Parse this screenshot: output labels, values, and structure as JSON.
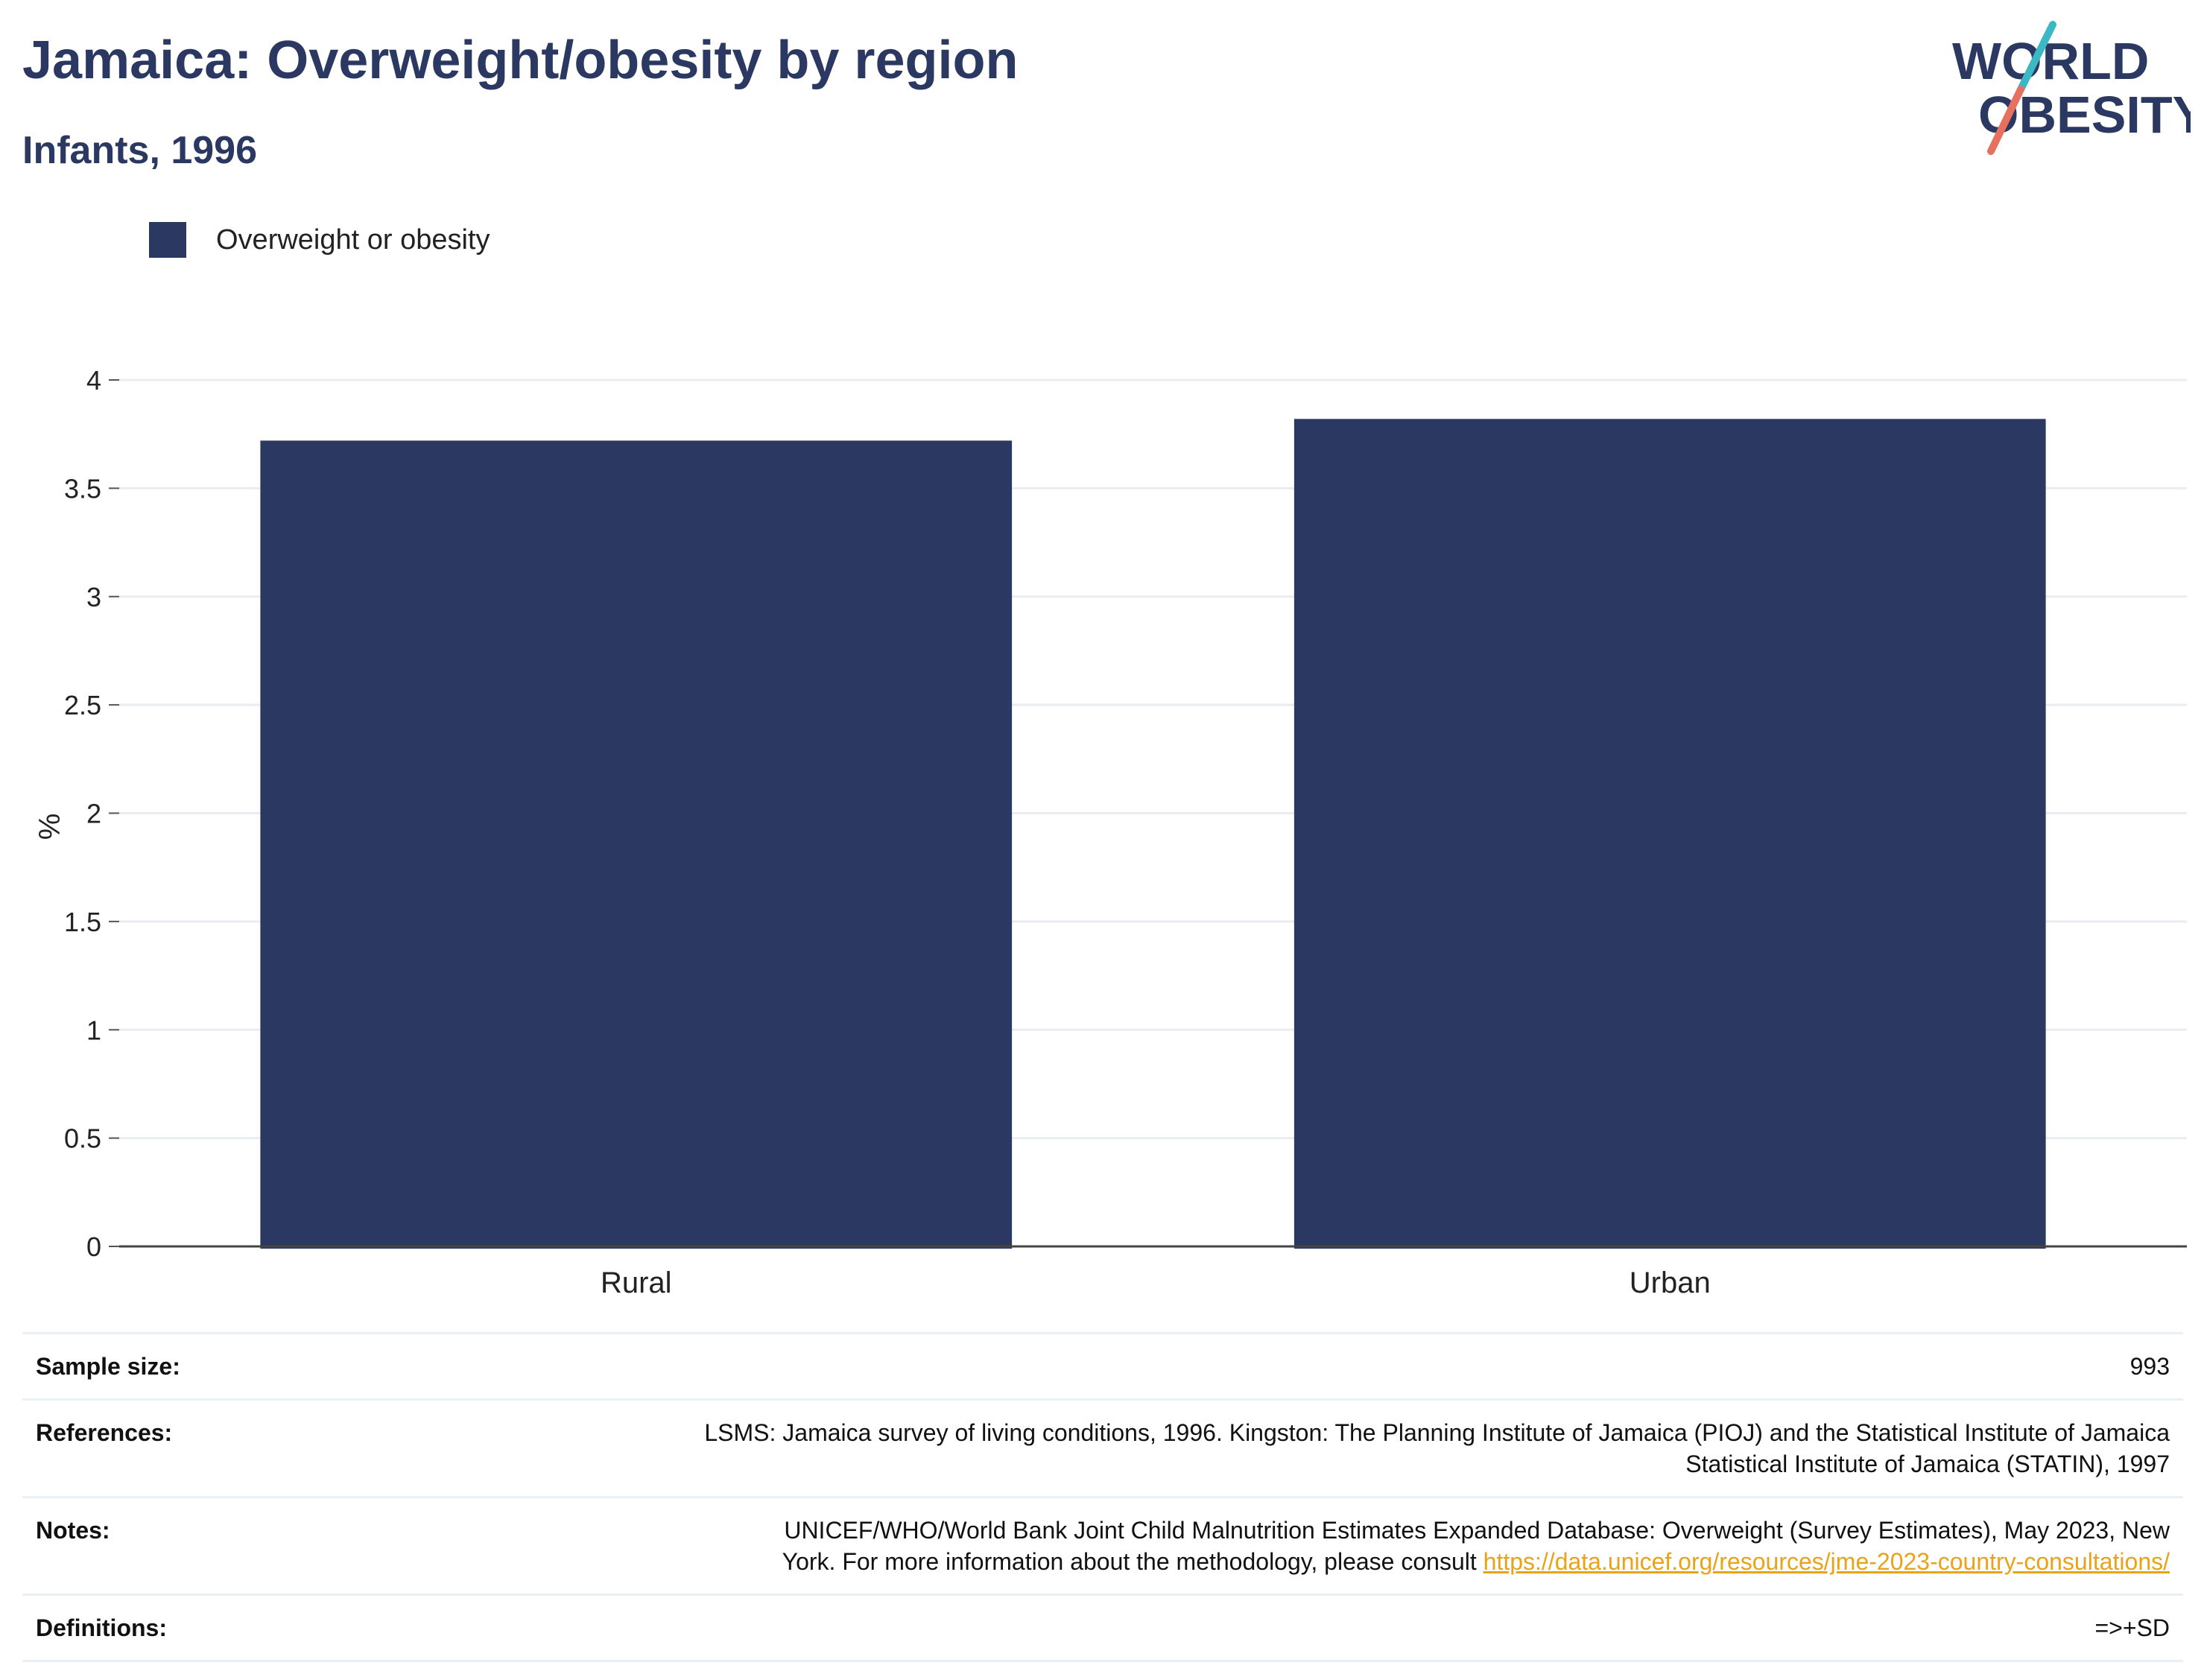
{
  "header": {
    "title": "Jamaica: Overweight/obesity by region",
    "subtitle": "Infants, 1996"
  },
  "logo": {
    "line1": "WORLD",
    "line2": "OBESITY",
    "colors": {
      "text": "#2b3862",
      "slash_top": "#3bb8c3",
      "slash_bottom": "#e8705f"
    }
  },
  "chart_data": {
    "type": "bar",
    "categories": [
      "Rural",
      "Urban"
    ],
    "series": [
      {
        "name": "Overweight or obesity",
        "values": [
          3.72,
          3.82
        ],
        "color": "#2b3862"
      }
    ],
    "ylabel": "%",
    "xlabel": "",
    "ylim": [
      0,
      4
    ],
    "yticks": [
      "0",
      "0.5",
      "1",
      "1.5",
      "2",
      "2.5",
      "3",
      "3.5",
      "4"
    ],
    "grid": true,
    "legend": "top-left"
  },
  "info": {
    "sample_size_label": "Sample size:",
    "sample_size_value": "993",
    "references_label": "References:",
    "references_line1": "LSMS: Jamaica survey of living conditions, 1996. Kingston: The Planning Institute of Jamaica (PIOJ) and the Statistical Institute of Jamaica",
    "references_line2": "Statistical Institute of Jamaica (STATIN), 1997",
    "notes_label": "Notes:",
    "notes_line1": "UNICEF/WHO/World Bank Joint Child Malnutrition Estimates Expanded Database: Overweight (Survey Estimates), May 2023, New",
    "notes_line2": "York. For more information about the methodology, please consult ",
    "notes_link": "https://data.unicef.org/resources/jme-2023-country-consultations/",
    "definitions_label": "Definitions:",
    "definitions_value": "=>+SD"
  }
}
